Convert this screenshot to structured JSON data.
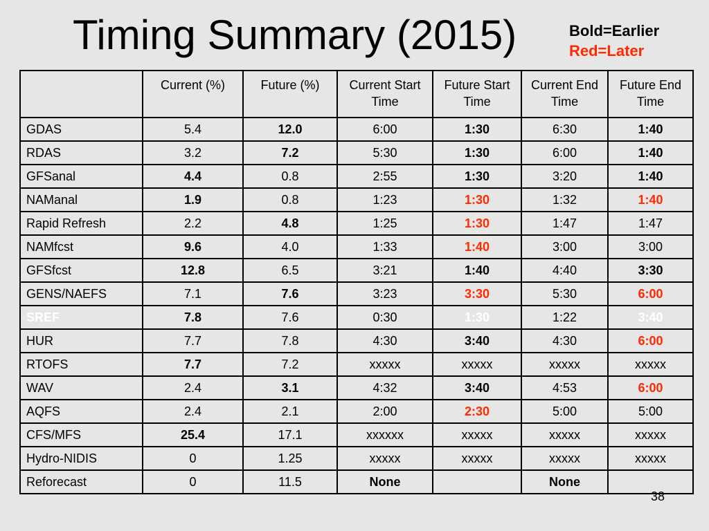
{
  "title": "Timing Summary (2015)",
  "legend": {
    "bold": "Bold=Earlier",
    "red": "Red=Later"
  },
  "colors": {
    "later": "#ff2a00",
    "background": "#e6e6e6"
  },
  "headers": [
    "",
    "Current (%)",
    "Future (%)",
    "Current Start Time",
    "Future Start Time",
    "Current End Time",
    "Future End Time"
  ],
  "rows": [
    {
      "cells": [
        {
          "v": "GDAS"
        },
        {
          "v": "5.4"
        },
        {
          "v": "12.0",
          "s": "b"
        },
        {
          "v": "6:00"
        },
        {
          "v": "1:30",
          "s": "b"
        },
        {
          "v": "6:30"
        },
        {
          "v": "1:40",
          "s": "b"
        }
      ]
    },
    {
      "cells": [
        {
          "v": "RDAS"
        },
        {
          "v": "3.2"
        },
        {
          "v": "7.2",
          "s": "b"
        },
        {
          "v": "5:30"
        },
        {
          "v": "1:30",
          "s": "b"
        },
        {
          "v": "6:00"
        },
        {
          "v": "1:40",
          "s": "b"
        }
      ]
    },
    {
      "cells": [
        {
          "v": "GFSanal"
        },
        {
          "v": "4.4",
          "s": "b"
        },
        {
          "v": "0.8"
        },
        {
          "v": "2:55"
        },
        {
          "v": "1:30",
          "s": "b"
        },
        {
          "v": "3:20"
        },
        {
          "v": "1:40",
          "s": "b"
        }
      ]
    },
    {
      "cells": [
        {
          "v": "NAManal"
        },
        {
          "v": "1.9",
          "s": "b"
        },
        {
          "v": "0.8"
        },
        {
          "v": "1:23"
        },
        {
          "v": "1:30",
          "s": "r"
        },
        {
          "v": "1:32"
        },
        {
          "v": "1:40",
          "s": "r"
        }
      ]
    },
    {
      "cells": [
        {
          "v": "Rapid Refresh"
        },
        {
          "v": "2.2"
        },
        {
          "v": "4.8",
          "s": "b"
        },
        {
          "v": "1:25"
        },
        {
          "v": "1:30",
          "s": "r"
        },
        {
          "v": "1:47"
        },
        {
          "v": "1:47"
        }
      ]
    },
    {
      "cells": [
        {
          "v": "NAMfcst"
        },
        {
          "v": "9.6",
          "s": "b"
        },
        {
          "v": "4.0"
        },
        {
          "v": "1:33"
        },
        {
          "v": "1:40",
          "s": "r"
        },
        {
          "v": "3:00"
        },
        {
          "v": "3:00"
        }
      ]
    },
    {
      "cells": [
        {
          "v": "GFSfcst"
        },
        {
          "v": "12.8",
          "s": "b"
        },
        {
          "v": "6.5"
        },
        {
          "v": "3:21"
        },
        {
          "v": "1:40",
          "s": "b"
        },
        {
          "v": "4:40"
        },
        {
          "v": "3:30",
          "s": "b"
        }
      ]
    },
    {
      "cells": [
        {
          "v": "GENS/NAEFS"
        },
        {
          "v": "7.1"
        },
        {
          "v": "7.6",
          "s": "b"
        },
        {
          "v": "3:23"
        },
        {
          "v": "3:30",
          "s": "r"
        },
        {
          "v": "5:30"
        },
        {
          "v": "6:00",
          "s": "r"
        }
      ]
    },
    {
      "cells": [
        {
          "v": "SREF",
          "s": "w"
        },
        {
          "v": "7.8",
          "s": "b"
        },
        {
          "v": "7.6"
        },
        {
          "v": "0:30"
        },
        {
          "v": "1:30",
          "s": "w"
        },
        {
          "v": "1:22"
        },
        {
          "v": "3:40",
          "s": "w"
        }
      ]
    },
    {
      "cells": [
        {
          "v": "HUR"
        },
        {
          "v": "7.7"
        },
        {
          "v": "7.8"
        },
        {
          "v": "4:30"
        },
        {
          "v": "3:40",
          "s": "b"
        },
        {
          "v": "4:30"
        },
        {
          "v": "6:00",
          "s": "r"
        }
      ]
    },
    {
      "cells": [
        {
          "v": "RTOFS"
        },
        {
          "v": "7.7",
          "s": "b"
        },
        {
          "v": "7.2"
        },
        {
          "v": "xxxxx"
        },
        {
          "v": "xxxxx"
        },
        {
          "v": "xxxxx"
        },
        {
          "v": "xxxxx"
        }
      ]
    },
    {
      "cells": [
        {
          "v": "WAV"
        },
        {
          "v": "2.4"
        },
        {
          "v": "3.1",
          "s": "b"
        },
        {
          "v": "4:32"
        },
        {
          "v": "3:40",
          "s": "b"
        },
        {
          "v": "4:53"
        },
        {
          "v": "6:00",
          "s": "r"
        }
      ]
    },
    {
      "cells": [
        {
          "v": "AQFS"
        },
        {
          "v": "2.4"
        },
        {
          "v": "2.1"
        },
        {
          "v": "2:00"
        },
        {
          "v": "2:30",
          "s": "r"
        },
        {
          "v": "5:00"
        },
        {
          "v": "5:00"
        }
      ]
    },
    {
      "cells": [
        {
          "v": "CFS/MFS"
        },
        {
          "v": "25.4",
          "s": "b"
        },
        {
          "v": "17.1"
        },
        {
          "v": "xxxxxx"
        },
        {
          "v": "xxxxx"
        },
        {
          "v": "xxxxx"
        },
        {
          "v": "xxxxx"
        }
      ]
    },
    {
      "cells": [
        {
          "v": "Hydro-NIDIS"
        },
        {
          "v": "0"
        },
        {
          "v": "1.25"
        },
        {
          "v": "xxxxx"
        },
        {
          "v": "xxxxx"
        },
        {
          "v": "xxxxx"
        },
        {
          "v": "xxxxx"
        }
      ]
    },
    {
      "cells": [
        {
          "v": "Reforecast"
        },
        {
          "v": "0"
        },
        {
          "v": "11.5"
        },
        {
          "v": "None",
          "s": "b"
        },
        {
          "v": ""
        },
        {
          "v": "None",
          "s": "b"
        },
        {
          "v": ""
        }
      ]
    }
  ],
  "page_number": "38"
}
